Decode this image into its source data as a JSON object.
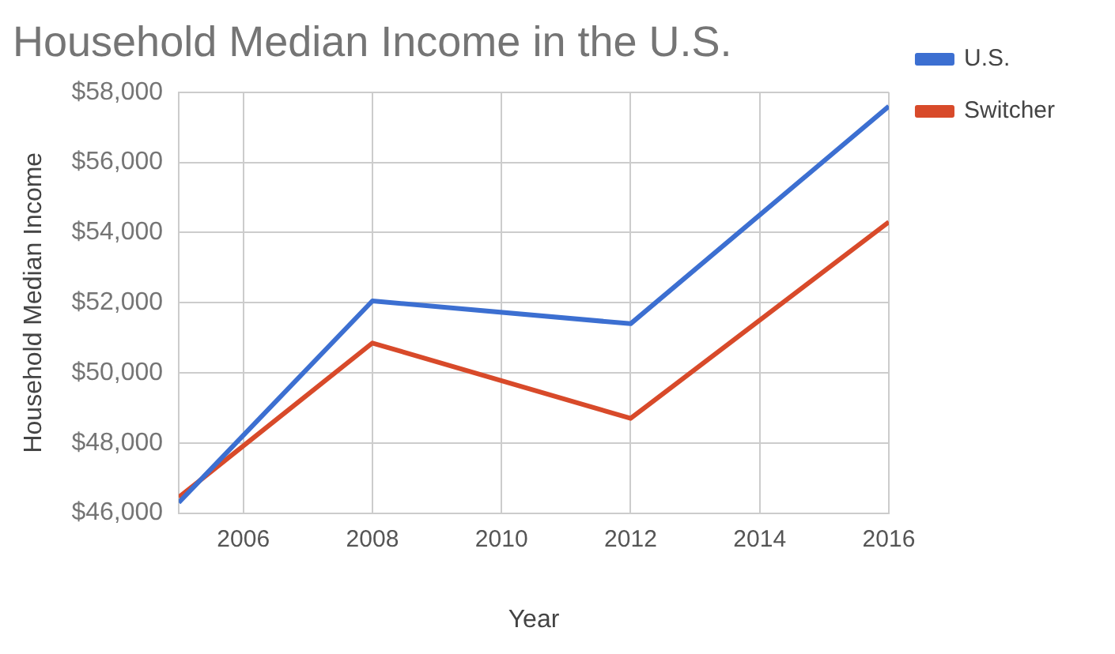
{
  "chart_data": {
    "type": "line",
    "title": "Household Median Income in the U.S.",
    "xlabel": "Year",
    "ylabel": "Household Median Income",
    "x": [
      2005,
      2008,
      2012,
      2016
    ],
    "series": [
      {
        "name": "U.S.",
        "color": "#3c6fd1",
        "values": [
          46300,
          52050,
          51400,
          57600
        ]
      },
      {
        "name": "Switcher",
        "color": "#d84a2a",
        "values": [
          46450,
          50850,
          48700,
          54300
        ]
      }
    ],
    "xlim": [
      2005,
      2016
    ],
    "xticks": [
      2006,
      2008,
      2010,
      2012,
      2014,
      2016
    ],
    "ylim": [
      46000,
      58000
    ],
    "yticks": [
      {
        "value": 46000,
        "label": "$46,000"
      },
      {
        "value": 48000,
        "label": "$48,000"
      },
      {
        "value": 50000,
        "label": "$50,000"
      },
      {
        "value": 52000,
        "label": "$52,000"
      },
      {
        "value": 54000,
        "label": "$54,000"
      },
      {
        "value": 56000,
        "label": "$56,000"
      },
      {
        "value": 58000,
        "label": "$58,000"
      }
    ],
    "grid": true,
    "legend": "top right",
    "marker": "none",
    "line_style": "solid"
  }
}
